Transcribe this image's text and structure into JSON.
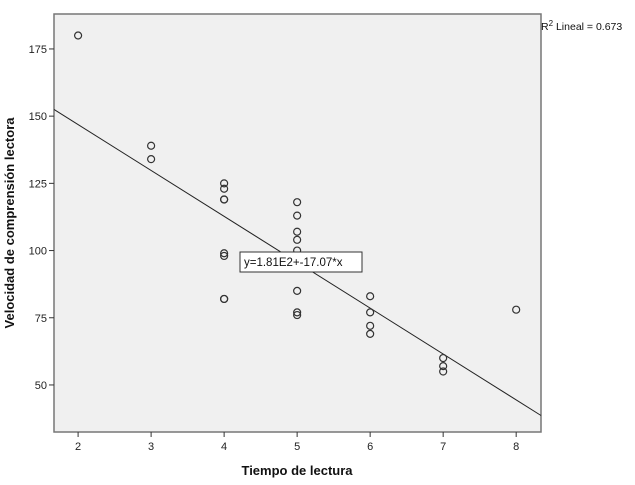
{
  "chart_data": {
    "type": "scatter",
    "xlabel": "Tiempo de lectura",
    "ylabel": "Velocidad de comprensión lectora",
    "xlim": [
      1.67,
      8.34
    ],
    "ylim": [
      32.5,
      188
    ],
    "xticks": [
      2,
      3,
      4,
      5,
      6,
      7,
      8
    ],
    "yticks": [
      50,
      75,
      100,
      125,
      150,
      175
    ],
    "grid": false,
    "points": [
      [
        2,
        180
      ],
      [
        3,
        139
      ],
      [
        3,
        134
      ],
      [
        4,
        125
      ],
      [
        4,
        123
      ],
      [
        4,
        119
      ],
      [
        4,
        119
      ],
      [
        4,
        99
      ],
      [
        4,
        98
      ],
      [
        4,
        82
      ],
      [
        4,
        82
      ],
      [
        5,
        118
      ],
      [
        5,
        113
      ],
      [
        5,
        107
      ],
      [
        5,
        104
      ],
      [
        5,
        100
      ],
      [
        5,
        85
      ],
      [
        5,
        77
      ],
      [
        5,
        76
      ],
      [
        6,
        83
      ],
      [
        6,
        77
      ],
      [
        6,
        72
      ],
      [
        6,
        69
      ],
      [
        7,
        60
      ],
      [
        7,
        57
      ],
      [
        7,
        55
      ],
      [
        8,
        78
      ]
    ],
    "fit_line": {
      "intercept": 181,
      "slope": -17.07,
      "label": "y=1.81E2+-17.07*x"
    },
    "r2_label": {
      "prefix": "R",
      "sup": "2",
      "text": " Lineal = 0.673"
    },
    "colors": {
      "plot_background": "#f0f0f0",
      "marker": "#333333",
      "line": "#222222"
    }
  }
}
